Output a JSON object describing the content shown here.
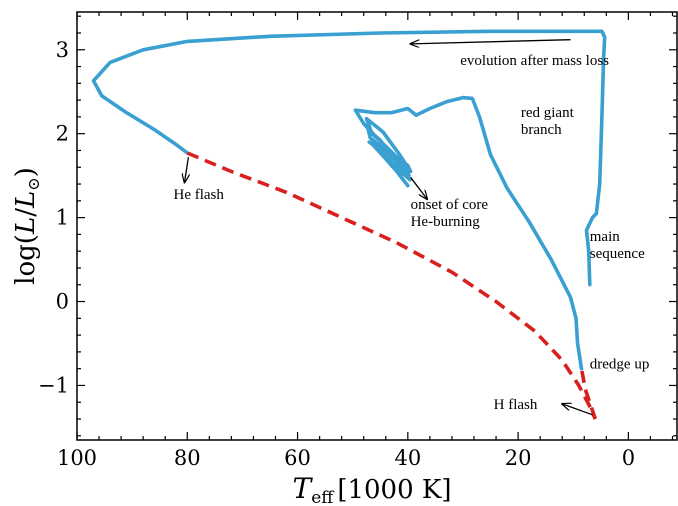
{
  "chart_data": {
    "type": "line",
    "xlabel": {
      "main": "T",
      "sub": "eff",
      "unit": "[1000 K]"
    },
    "ylabel": {
      "prefix": "log(",
      "var": "L",
      "slash": "/",
      "var2": "L",
      "sub": "⊙",
      "suffix": ")"
    },
    "xlim": [
      100,
      -9
    ],
    "ylim": [
      -1.65,
      3.45
    ],
    "x_ticks": [
      100,
      80,
      60,
      40,
      20,
      0
    ],
    "x_tick_labels": [
      "100",
      "80",
      "60",
      "40",
      "20",
      "0"
    ],
    "y_ticks": [
      -1,
      0,
      1,
      2,
      3
    ],
    "y_tick_labels": [
      "−1",
      "0",
      "1",
      "2",
      "3"
    ],
    "grid": false,
    "colors": {
      "solid": "#3a9fd1",
      "dashed": "#d9201f"
    },
    "series": [
      {
        "style": "solid",
        "segments": [
          [
            [
              7.0,
              0.2
            ],
            [
              7.2,
              0.6
            ],
            [
              7.6,
              0.85
            ],
            [
              6.5,
              1.0
            ],
            [
              5.8,
              1.05
            ],
            [
              5.2,
              1.4
            ],
            [
              4.8,
              2.2
            ],
            [
              4.5,
              2.9
            ],
            [
              4.3,
              3.15
            ],
            [
              4.8,
              3.22
            ],
            [
              12,
              3.22
            ],
            [
              25,
              3.22
            ],
            [
              45,
              3.2
            ],
            [
              65,
              3.16
            ],
            [
              80,
              3.1
            ],
            [
              88,
              3.0
            ],
            [
              94,
              2.85
            ],
            [
              97,
              2.63
            ],
            [
              95.5,
              2.45
            ],
            [
              91,
              2.25
            ],
            [
              86,
              2.05
            ],
            [
              82,
              1.87
            ],
            [
              80,
              1.77
            ]
          ],
          [
            [
              8.5,
              -0.8
            ],
            [
              9.2,
              -0.5
            ],
            [
              9.5,
              -0.2
            ],
            [
              10.5,
              0.05
            ],
            [
              14,
              0.5
            ],
            [
              18,
              0.95
            ],
            [
              22,
              1.35
            ],
            [
              25,
              1.75
            ],
            [
              27,
              2.2
            ],
            [
              28.3,
              2.42
            ],
            [
              30,
              2.43
            ],
            [
              33,
              2.38
            ],
            [
              36,
              2.3
            ],
            [
              38.5,
              2.22
            ],
            [
              40,
              2.3
            ],
            [
              43,
              2.25
            ],
            [
              46,
              2.25
            ],
            [
              49.5,
              2.28
            ],
            [
              48,
              2.12
            ],
            [
              46,
              1.98
            ],
            [
              44,
              1.84
            ],
            [
              42,
              1.72
            ],
            [
              40,
              1.62
            ],
            [
              39.5,
              1.55
            ],
            [
              41.5,
              1.75
            ],
            [
              44.5,
              2.02
            ],
            [
              47.5,
              2.18
            ],
            [
              46.5,
              2.0
            ],
            [
              44,
              1.85
            ],
            [
              42,
              1.72
            ],
            [
              40.5,
              1.6
            ],
            [
              39.8,
              1.5
            ],
            [
              42,
              1.68
            ],
            [
              45,
              1.92
            ],
            [
              47.2,
              2.05
            ],
            [
              46.8,
              1.95
            ],
            [
              44,
              1.8
            ],
            [
              42,
              1.65
            ],
            [
              41,
              1.55
            ],
            [
              39.6,
              1.45
            ],
            [
              42.5,
              1.62
            ],
            [
              45.5,
              1.85
            ],
            [
              47,
              1.9
            ],
            [
              46.5,
              1.88
            ],
            [
              44,
              1.7
            ],
            [
              42,
              1.55
            ],
            [
              40,
              1.38
            ]
          ]
        ]
      },
      {
        "style": "dashed",
        "segments": [
          [
            [
              80,
              1.77
            ],
            [
              72,
              1.55
            ],
            [
              62,
              1.3
            ],
            [
              52,
              1.0
            ],
            [
              42,
              0.7
            ],
            [
              32,
              0.35
            ],
            [
              24,
              0.0
            ],
            [
              17,
              -0.35
            ],
            [
              12,
              -0.7
            ],
            [
              9,
              -1.0
            ],
            [
              7,
              -1.25
            ],
            [
              6,
              -1.4
            ]
          ],
          [
            [
              6.0,
              -1.4
            ],
            [
              7.8,
              -1.05
            ],
            [
              8.5,
              -0.8
            ]
          ]
        ]
      }
    ],
    "annotations": [
      {
        "lines": [
          "evolution after mass loss"
        ],
        "x": 17,
        "y": 2.82,
        "align": "middle",
        "arrow": {
          "from": [
            10.5,
            3.12
          ],
          "to": [
            39.5,
            3.07
          ]
        }
      },
      {
        "lines": [
          "red giant",
          "branch"
        ],
        "x": 19.5,
        "y": 2.2,
        "align": "start"
      },
      {
        "lines": [
          "He flash"
        ],
        "x": 82.5,
        "y": 1.22,
        "align": "start",
        "arrow": {
          "from": [
            79.8,
            1.72
          ],
          "to": [
            80.5,
            1.42
          ]
        }
      },
      {
        "lines": [
          "onset of core",
          "He-burning"
        ],
        "x": 39.5,
        "y": 1.1,
        "align": "start",
        "arrow": {
          "from": [
            39.5,
            1.48
          ],
          "to": [
            36.5,
            1.22
          ]
        }
      },
      {
        "lines": [
          "main",
          "sequence"
        ],
        "x": 7,
        "y": 0.72,
        "align": "start"
      },
      {
        "lines": [
          "dredge up"
        ],
        "x": 7,
        "y": -0.8,
        "align": "start"
      },
      {
        "lines": [
          "H flash"
        ],
        "x": 16.5,
        "y": -1.28,
        "align": "end",
        "arrow": {
          "from": [
            6.5,
            -1.35
          ],
          "to": [
            12,
            -1.22
          ]
        }
      }
    ]
  }
}
